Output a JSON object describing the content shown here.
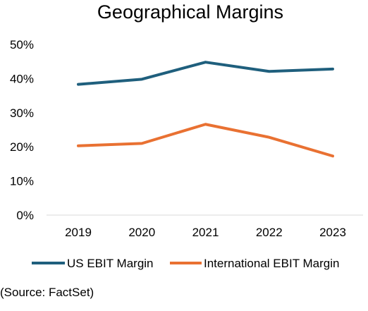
{
  "chart_data": {
    "type": "line",
    "title": "Geographical Margins",
    "xlabel": "",
    "ylabel": "",
    "categories": [
      "2019",
      "2020",
      "2021",
      "2022",
      "2023"
    ],
    "y_ticks": [
      "0%",
      "10%",
      "20%",
      "30%",
      "40%",
      "50%"
    ],
    "ylim": [
      0,
      50
    ],
    "grid": false,
    "legend_position": "bottom",
    "series": [
      {
        "name": "US EBIT Margin",
        "color": "#1f5f7d",
        "values": [
          38.3,
          39.8,
          44.8,
          42.1,
          42.8
        ]
      },
      {
        "name": "International EBIT Margin",
        "color": "#e97132",
        "values": [
          20.3,
          21.0,
          26.6,
          22.8,
          17.3
        ]
      }
    ]
  },
  "footer": {
    "source": "(Source: FactSet)"
  }
}
